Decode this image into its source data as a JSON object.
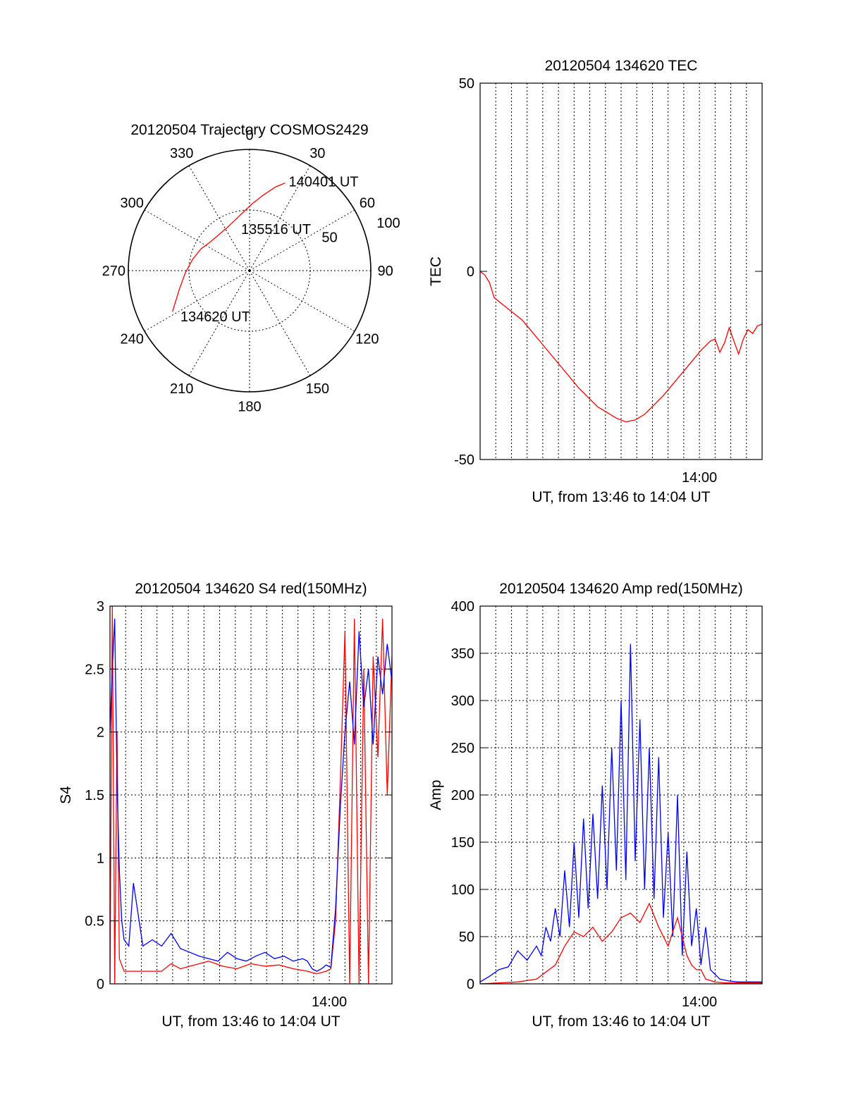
{
  "chart_data": [
    {
      "type": "polar",
      "title": "20120504 Trajectory COSMOS2429",
      "azimuth_labels": [
        "0",
        "30",
        "60",
        "90",
        "120",
        "150",
        "180",
        "210",
        "240",
        "270",
        "300",
        "330"
      ],
      "radial_ticks": [
        "50",
        "100"
      ],
      "series": [
        {
          "color": "#ff0000",
          "points": [
            {
              "az": 242,
              "r": 72
            },
            {
              "az": 255,
              "r": 60
            },
            {
              "az": 268,
              "r": 53
            },
            {
              "az": 281,
              "r": 48
            },
            {
              "az": 294,
              "r": 44
            },
            {
              "az": 307,
              "r": 40
            },
            {
              "az": 320,
              "r": 39
            },
            {
              "az": 332,
              "r": 40
            },
            {
              "az": 343,
              "r": 43
            },
            {
              "az": 353,
              "r": 48
            },
            {
              "az": 2,
              "r": 55
            },
            {
              "az": 10,
              "r": 63
            },
            {
              "az": 17,
              "r": 72
            },
            {
              "az": 22,
              "r": 78
            }
          ]
        }
      ],
      "annotations": [
        {
          "text": "140401 UT",
          "az": 22,
          "r": 80
        },
        {
          "text": "135516 UT",
          "az": 345,
          "r": 36
        },
        {
          "text": "134620 UT",
          "az": 238,
          "r": 70
        }
      ]
    },
    {
      "type": "line",
      "title": "20120504 134620 TEC",
      "xlabel": "UT, from 13:46 to 14:04 UT",
      "ylabel": "TEC",
      "xlim": [
        13.7667,
        14.0667
      ],
      "ylim": [
        -50,
        50
      ],
      "yticks": [
        "-50",
        "0",
        "50"
      ],
      "xticks": [
        {
          "label": "14:00",
          "value": 14.0
        }
      ],
      "grid": "vertical-dotted",
      "series": [
        {
          "color": "#ff0000",
          "x": [
            13.7667,
            13.7717,
            13.7767,
            13.7817,
            13.7917,
            13.8117,
            13.8317,
            13.8517,
            13.8717,
            13.8917,
            13.9117,
            13.9217,
            13.9317,
            13.9417,
            13.9517,
            13.9617,
            13.9717,
            13.9817,
            13.9917,
            14.0017,
            14.0117,
            14.0167,
            14.0217,
            14.0267,
            14.0317,
            14.0367,
            14.0417,
            14.0467,
            14.0517,
            14.0567,
            14.0617,
            14.0667
          ],
          "y": [
            0,
            -1,
            -3,
            -7,
            -9,
            -13,
            -19,
            -25,
            -31,
            -36,
            -39,
            -40,
            -39.5,
            -38,
            -35.5,
            -33,
            -30,
            -27,
            -24,
            -21,
            -18.5,
            -18,
            -21.5,
            -19,
            -15,
            -18.5,
            -22,
            -18,
            -15.5,
            -16.5,
            -14.5,
            -14
          ]
        }
      ]
    },
    {
      "type": "line",
      "title": "20120504 134620 S4 red(150MHz)",
      "xlabel": "UT, from 13:46 to 14:04 UT",
      "ylabel": "S4",
      "xlim": [
        13.7667,
        14.0667
      ],
      "ylim": [
        0,
        3
      ],
      "yticks": [
        "0",
        "0.5",
        "1",
        "1.5",
        "2",
        "2.5",
        "3"
      ],
      "xticks": [
        {
          "label": "14:00",
          "value": 14.0
        }
      ],
      "grid": "dotted",
      "series": [
        {
          "color": "#ff0000",
          "x": [
            13.7667,
            13.7692,
            13.7717,
            13.7742,
            13.7767,
            13.7817,
            13.7917,
            13.8067,
            13.8217,
            13.8317,
            13.8417,
            13.8567,
            13.8717,
            13.8867,
            13.9017,
            13.9167,
            13.9317,
            13.9467,
            13.9617,
            13.9767,
            13.9867,
            13.9967,
            14.0017,
            14.0067,
            14.0117,
            14.0167,
            14.0217,
            14.0267,
            14.0317,
            14.0367,
            14.0417,
            14.0467,
            14.0517,
            14.0567,
            14.0617,
            14.0667
          ],
          "y": [
            0,
            3,
            0,
            2,
            0.2,
            0.1,
            0.1,
            0.1,
            0.1,
            0.16,
            0.12,
            0.15,
            0.18,
            0.14,
            0.12,
            0.16,
            0.14,
            0.15,
            0.12,
            0.1,
            0.08,
            0.1,
            0.12,
            0.5,
            1.6,
            2.8,
            0,
            2.9,
            0,
            2.5,
            0,
            2.6,
            1.8,
            2.9,
            1.5,
            2.6
          ]
        },
        {
          "color": "#0000ff",
          "x": [
            13.7667,
            13.7692,
            13.7717,
            13.7742,
            13.7767,
            13.7792,
            13.7817,
            13.7867,
            13.7917,
            13.8017,
            13.8117,
            13.8217,
            13.8317,
            13.8417,
            13.8517,
            13.8617,
            13.8717,
            13.8817,
            13.8917,
            13.9017,
            13.9117,
            13.9217,
            13.9317,
            13.9417,
            13.9517,
            13.9617,
            13.9717,
            13.9767,
            13.9817,
            13.9867,
            13.9917,
            13.9967,
            14.0017,
            14.0067,
            14.0117,
            14.0167,
            14.0217,
            14.0267,
            14.0317,
            14.0367,
            14.0417,
            14.0467,
            14.0517,
            14.0567,
            14.0617,
            14.0667
          ],
          "y": [
            2.0,
            2.5,
            2.9,
            1.6,
            0.9,
            0.5,
            0.35,
            0.3,
            0.8,
            0.3,
            0.35,
            0.3,
            0.4,
            0.28,
            0.25,
            0.22,
            0.2,
            0.18,
            0.25,
            0.2,
            0.18,
            0.22,
            0.25,
            0.2,
            0.22,
            0.18,
            0.2,
            0.18,
            0.12,
            0.1,
            0.12,
            0.15,
            0.13,
            0.6,
            1.4,
            2.0,
            2.4,
            1.9,
            2.8,
            2.2,
            2.5,
            1.9,
            2.6,
            2.3,
            2.7,
            2.4
          ]
        }
      ]
    },
    {
      "type": "line",
      "title": "20120504 134620 Amp red(150MHz)",
      "xlabel": "UT, from 13:46 to 14:04 UT",
      "ylabel": "Amp",
      "xlim": [
        13.7667,
        14.0667
      ],
      "ylim": [
        0,
        400
      ],
      "yticks": [
        "0",
        "50",
        "100",
        "150",
        "200",
        "250",
        "300",
        "350",
        "400"
      ],
      "xticks": [
        {
          "label": "14:00",
          "value": 14.0
        }
      ],
      "grid": "dotted",
      "series": [
        {
          "color": "#0000ff",
          "x": [
            13.7667,
            13.7767,
            13.7867,
            13.7967,
            13.8067,
            13.8167,
            13.8267,
            13.8317,
            13.8367,
            13.8417,
            13.8467,
            13.8517,
            13.8567,
            13.8617,
            13.8667,
            13.8717,
            13.8767,
            13.8817,
            13.8867,
            13.8917,
            13.8967,
            13.9017,
            13.9067,
            13.9117,
            13.9167,
            13.9217,
            13.9267,
            13.9317,
            13.9367,
            13.9417,
            13.9467,
            13.9517,
            13.9567,
            13.9617,
            13.9667,
            13.9717,
            13.9767,
            13.9817,
            13.9867,
            13.9917,
            13.9967,
            14.0017,
            14.0067,
            14.0117,
            14.0217,
            14.0317,
            14.0417,
            14.0517,
            14.0667
          ],
          "y": [
            2,
            8,
            15,
            18,
            35,
            25,
            40,
            30,
            60,
            45,
            80,
            50,
            120,
            60,
            150,
            70,
            175,
            80,
            180,
            90,
            210,
            100,
            250,
            120,
            300,
            110,
            360,
            130,
            280,
            100,
            250,
            90,
            240,
            70,
            160,
            50,
            200,
            30,
            140,
            40,
            80,
            20,
            60,
            15,
            5,
            3,
            2,
            2,
            2
          ]
        },
        {
          "color": "#ff0000",
          "x": [
            13.7667,
            13.7867,
            13.8067,
            13.8267,
            13.8467,
            13.8567,
            13.8667,
            13.8767,
            13.8867,
            13.8967,
            13.9067,
            13.9167,
            13.9267,
            13.9367,
            13.9467,
            13.9567,
            13.9667,
            13.9717,
            13.9767,
            13.9817,
            13.9867,
            13.9917,
            13.9967,
            14.0017,
            14.0067,
            14.0167,
            14.0267,
            14.0467,
            14.0667
          ],
          "y": [
            0,
            1,
            2,
            5,
            20,
            40,
            55,
            50,
            60,
            45,
            55,
            70,
            75,
            65,
            85,
            60,
            40,
            55,
            70,
            50,
            30,
            20,
            15,
            15,
            5,
            2,
            1,
            1,
            1
          ]
        }
      ]
    }
  ]
}
